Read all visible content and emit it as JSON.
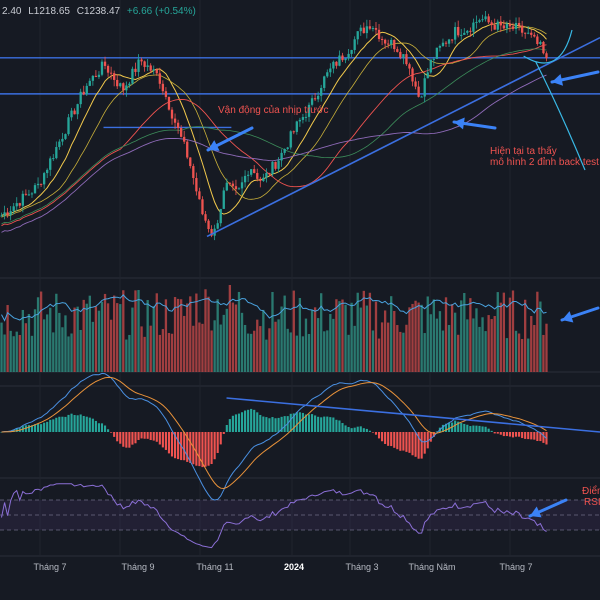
{
  "header": {
    "open": "2.40",
    "low": "L1218.65",
    "close": "C1238.47",
    "change": "+6.66 (+0.54%)"
  },
  "colors": {
    "up": "#26a69a",
    "down": "#ef5350",
    "ma_short": "#f2c94c",
    "ma_mid": "#ef5350",
    "ma_long": "#8e6ab8",
    "trend": "#3b6fe0",
    "arrow": "#3b82f6",
    "macd": "#4a90e2",
    "signal": "#e8923a",
    "rsi": "#8b6fd6",
    "annotation": "#ef5350"
  },
  "annotations": {
    "previous_wave": "Vận động của nhịp trước",
    "double_top_line1": "Hiện tại ta thấy",
    "double_top_line2": "mô hình 2 đỉnh back test",
    "rsi_line1": "Điểm",
    "rsi_line2": "RSI"
  },
  "chart_data": {
    "type": "candlestick",
    "x_ticks": [
      {
        "label": "Tháng 7",
        "year": false
      },
      {
        "label": "Tháng 9",
        "year": false
      },
      {
        "label": "Tháng 11",
        "year": false
      },
      {
        "label": "2024",
        "year": true
      },
      {
        "label": "Tháng 3",
        "year": false
      },
      {
        "label": "Tháng Năm",
        "year": false
      },
      {
        "label": "Tháng 7",
        "year": false
      }
    ],
    "price_path": [
      [
        0,
        1055
      ],
      [
        6,
        1090
      ],
      [
        10,
        1150
      ],
      [
        14,
        1210
      ],
      [
        17,
        1235
      ],
      [
        20,
        1205
      ],
      [
        23,
        1240
      ],
      [
        26,
        1220
      ],
      [
        28,
        1180
      ],
      [
        31,
        1120
      ],
      [
        33,
        1060
      ],
      [
        35,
        1030
      ],
      [
        37,
        1090
      ],
      [
        39,
        1080
      ],
      [
        41,
        1115
      ],
      [
        43,
        1095
      ],
      [
        46,
        1125
      ],
      [
        49,
        1165
      ],
      [
        51,
        1185
      ],
      [
        53,
        1215
      ],
      [
        55,
        1235
      ],
      [
        57,
        1250
      ],
      [
        59,
        1272
      ],
      [
        61,
        1285
      ],
      [
        63,
        1265
      ],
      [
        65,
        1258
      ],
      [
        67,
        1240
      ],
      [
        69,
        1195
      ],
      [
        71,
        1240
      ],
      [
        73,
        1260
      ],
      [
        75,
        1275
      ],
      [
        77,
        1278
      ],
      [
        79,
        1290
      ],
      [
        81,
        1283
      ],
      [
        83,
        1278
      ],
      [
        85,
        1278
      ],
      [
        87,
        1270
      ],
      [
        89,
        1255
      ],
      [
        90,
        1238
      ]
    ],
    "levels": [
      {
        "name": "resistance-upper",
        "value": 1243
      },
      {
        "name": "resistance-lower",
        "value": 1200
      },
      {
        "name": "previous-wave-support",
        "value": 1160
      }
    ],
    "trendline": {
      "start": [
        34,
        1030
      ],
      "end": [
        92,
        1243
      ]
    },
    "macd_trendline": {
      "start": [
        62,
        0.82
      ],
      "end": [
        100,
        0.05
      ]
    },
    "panels": [
      "price",
      "volume",
      "macd",
      "rsi"
    ]
  }
}
